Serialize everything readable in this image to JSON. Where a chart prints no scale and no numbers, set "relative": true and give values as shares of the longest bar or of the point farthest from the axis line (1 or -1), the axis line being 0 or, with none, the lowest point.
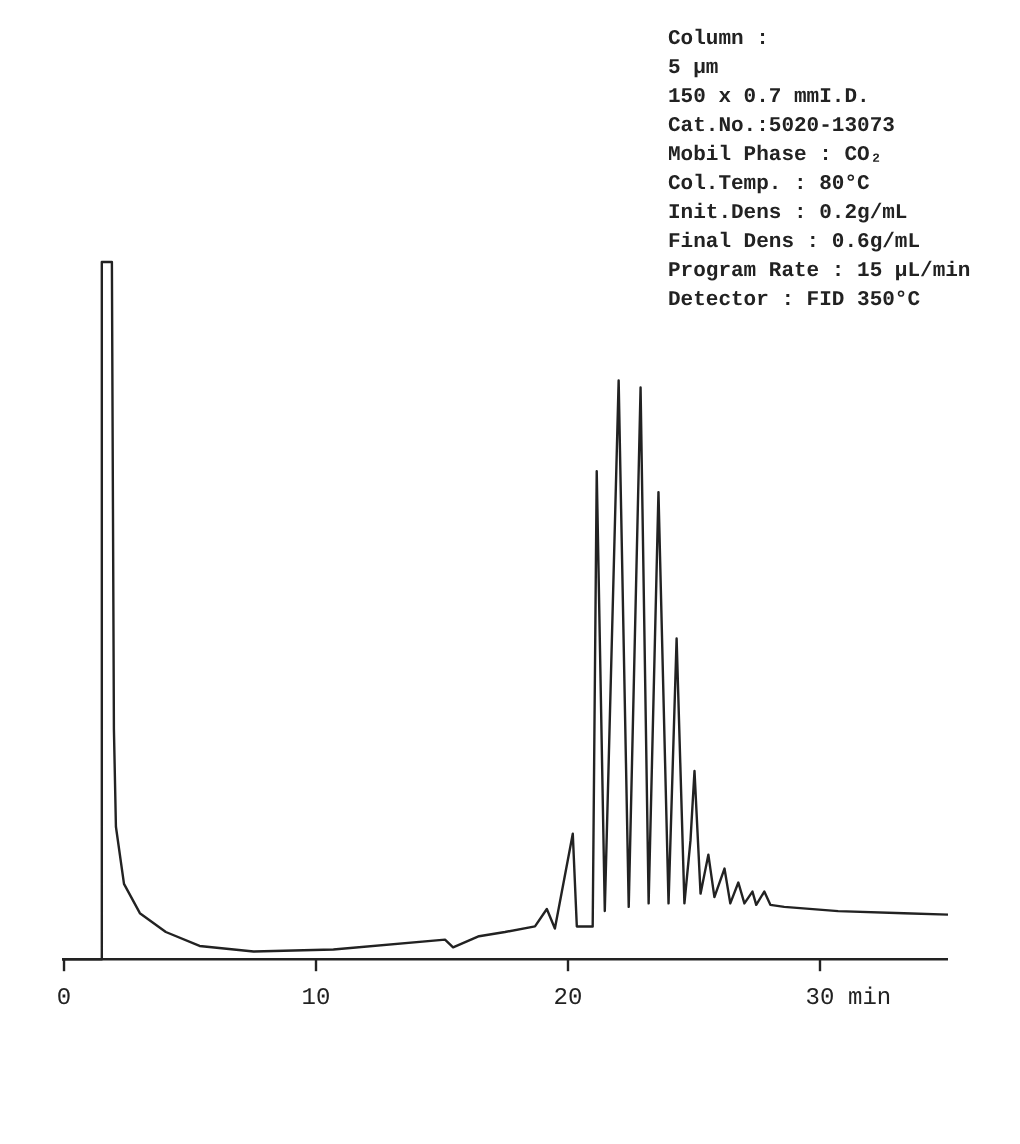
{
  "chart_data": {
    "type": "line",
    "relative": true,
    "xlabel": "min",
    "xlim": [
      -0.08,
      35.08
    ],
    "xticks": [
      0,
      10,
      20,
      30
    ],
    "grid": false,
    "legend": false,
    "marker": "none",
    "line_style": "solid",
    "annotations": [
      "Column :",
      "5 μm",
      "150 x 0.7 mmI.D.",
      "Cat.No.:5020-13073",
      "Mobil Phase : CO₂",
      "Col.Temp. : 80°C",
      "Init.Dens : 0.2g/mL",
      "Final Dens : 0.6g/mL",
      "Program Rate : 15 μL/min",
      "Detector : FID 350°C"
    ],
    "series": [
      {
        "color": "#222222",
        "x": [
          -0.08,
          1.48,
          1.5,
          1.9,
          1.98,
          2.06,
          2.38,
          3.01,
          4.04,
          5.38,
          7.52,
          10.69,
          15.12,
          15.44,
          16.47,
          17.5,
          18.69,
          19.16,
          19.48,
          20.19,
          20.35,
          20.98,
          21.14,
          21.46,
          22.01,
          22.41,
          22.88,
          23.2,
          23.59,
          23.99,
          24.31,
          24.62,
          24.86,
          25.02,
          25.26,
          25.57,
          25.81,
          26.21,
          26.44,
          26.76,
          27.0,
          27.32,
          27.47,
          27.79,
          28.03,
          28.58,
          30.72,
          33.33,
          35.08
        ],
        "values": [
          0,
          0,
          1,
          1,
          0.33,
          0.19,
          0.108,
          0.066,
          0.039,
          0.019,
          0.011,
          0.014,
          0.028,
          0.017,
          0.033,
          0.039,
          0.047,
          0.072,
          0.044,
          0.18,
          0.047,
          0.047,
          0.7,
          0.069,
          0.83,
          0.075,
          0.82,
          0.08,
          0.67,
          0.08,
          0.46,
          0.08,
          0.17,
          0.27,
          0.094,
          0.15,
          0.089,
          0.13,
          0.08,
          0.11,
          0.08,
          0.097,
          0.078,
          0.097,
          0.078,
          0.075,
          0.069,
          0.066,
          0.064
        ]
      }
    ]
  }
}
